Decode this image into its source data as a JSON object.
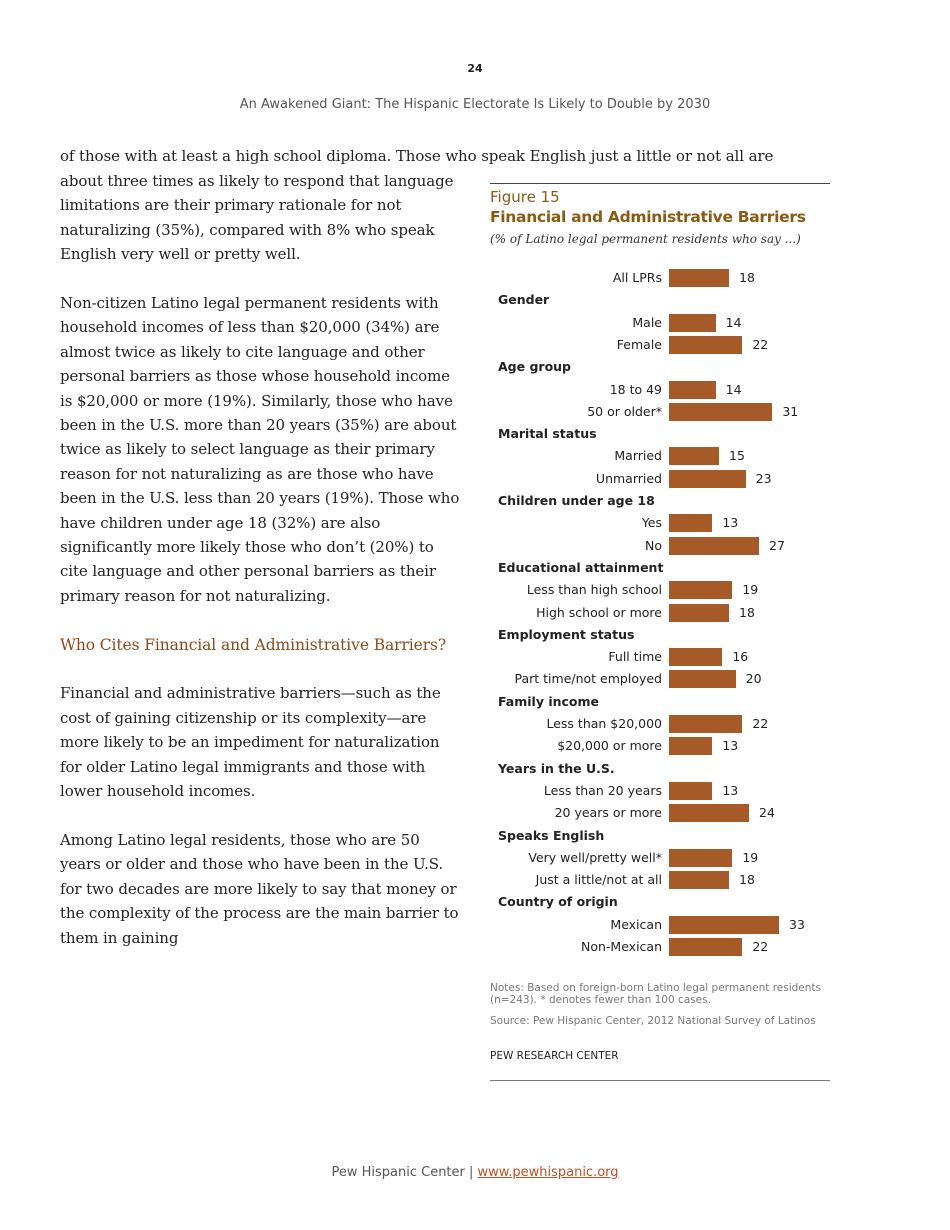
{
  "page_number": "24",
  "running_head": "An Awakened Giant: The Hispanic Electorate Is Likely to Double by 2030",
  "body": {
    "first_line": "of those with at least a high school diploma. Those who speak English just a little or not all are",
    "p1": "about three times as likely to respond that language limitations are their primary rationale for not naturalizing (35%), compared with 8% who speak English very well or pretty well.",
    "p2": "Non-citizen Latino legal permanent residents with household incomes of less than $20,000 (34%) are almost twice as likely to cite language and other personal barriers as those whose household income is $20,000 or more (19%). Similarly, those who have been in the U.S. more than 20 years (35%) are about twice as likely to select language as their primary reason for not naturalizing as are those who have been in the U.S. less than 20 years (19%). Those who have children under age 18 (32%) are also significantly more likely those who don’t (20%) to cite language and other personal barriers as their primary reason for not naturalizing.",
    "heading": "Who Cites Financial and Administrative Barriers?",
    "p3": "Financial and administrative barriers—such as the cost of gaining citizenship or its complexity—are more likely to be an impediment for naturalization for older Latino legal immigrants and those with lower household incomes.",
    "p4": "Among Latino legal residents, those who are 50 years or older and those who have been in the U.S. for two decades are more likely to say that money or the complexity of the process are the main barrier to them in gaining"
  },
  "figure": {
    "number": "Figure 15",
    "title": "Financial and Administrative Barriers",
    "subtitle": "(% of Latino legal permanent residents who say ...)",
    "notes": "Notes: Based on foreign-born Latino legal permanent residents (n=243). * denotes fewer than 100 cases.",
    "source": "Source: Pew Hispanic Center, 2012 National Survey of Latinos",
    "org": "PEW RESEARCH CENTER"
  },
  "chart_data": {
    "type": "bar",
    "orientation": "horizontal",
    "bar_color": "#a65a28",
    "xlim": [
      0,
      33
    ],
    "groups": [
      {
        "header": "",
        "items": [
          {
            "label": "All LPRs",
            "value": 18
          }
        ]
      },
      {
        "header": "Gender",
        "items": [
          {
            "label": "Male",
            "value": 14
          },
          {
            "label": "Female",
            "value": 22
          }
        ]
      },
      {
        "header": "Age group",
        "items": [
          {
            "label": "18 to 49",
            "value": 14
          },
          {
            "label": "50 or older*",
            "value": 31
          }
        ]
      },
      {
        "header": "Marital status",
        "items": [
          {
            "label": "Married",
            "value": 15
          },
          {
            "label": "Unmarried",
            "value": 23
          }
        ]
      },
      {
        "header": "Children under age 18",
        "items": [
          {
            "label": "Yes",
            "value": 13
          },
          {
            "label": "No",
            "value": 27
          }
        ]
      },
      {
        "header": "Educational attainment",
        "items": [
          {
            "label": "Less than high school",
            "value": 19
          },
          {
            "label": "High school or more",
            "value": 18
          }
        ]
      },
      {
        "header": "Employment status",
        "items": [
          {
            "label": "Full time",
            "value": 16
          },
          {
            "label": "Part time/not employed",
            "value": 20
          }
        ]
      },
      {
        "header": "Family income",
        "items": [
          {
            "label": "Less than $20,000",
            "value": 22
          },
          {
            "label": "$20,000 or more",
            "value": 13
          }
        ]
      },
      {
        "header": "Years in the U.S.",
        "items": [
          {
            "label": "Less than 20 years",
            "value": 13
          },
          {
            "label": "20 years or more",
            "value": 24
          }
        ]
      },
      {
        "header": "Speaks English",
        "items": [
          {
            "label": "Very well/pretty well*",
            "value": 19
          },
          {
            "label": "Just a little/not at all",
            "value": 18
          }
        ]
      },
      {
        "header": "Country of origin",
        "items": [
          {
            "label": "Mexican",
            "value": 33
          },
          {
            "label": "Non-Mexican",
            "value": 22
          }
        ]
      }
    ]
  },
  "footer": {
    "org": "Pew Hispanic Center | ",
    "link": "www.pewhispanic.org"
  }
}
